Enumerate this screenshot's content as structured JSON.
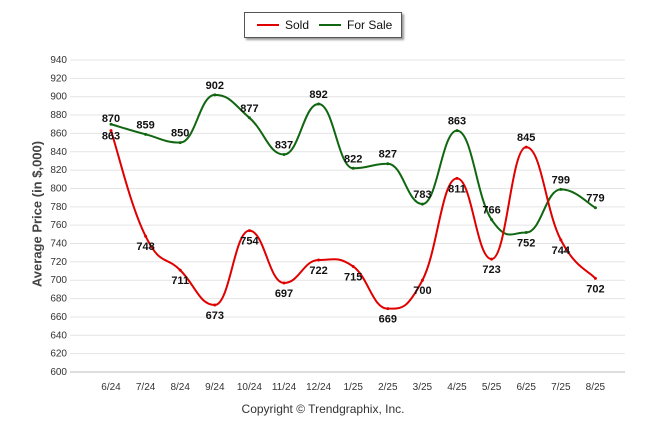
{
  "chart_data": {
    "type": "line",
    "categories": [
      "6/24",
      "7/24",
      "8/24",
      "9/24",
      "10/24",
      "11/24",
      "12/24",
      "1/25",
      "2/25",
      "3/25",
      "4/25",
      "5/25",
      "6/25",
      "7/25",
      "8/25"
    ],
    "series": [
      {
        "name": "Sold",
        "color": "#e00000",
        "values": [
          863,
          748,
          711,
          673,
          754,
          697,
          722,
          715,
          669,
          700,
          811,
          723,
          845,
          744,
          702
        ]
      },
      {
        "name": "For Sale",
        "color": "#116611",
        "values": [
          870,
          859,
          850,
          902,
          877,
          837,
          892,
          822,
          827,
          783,
          863,
          766,
          752,
          799,
          779
        ]
      }
    ],
    "title": "",
    "xlabel": "",
    "ylabel": "Average Price (in $,000)",
    "ylim": [
      600,
      940
    ],
    "yticks": [
      600,
      620,
      640,
      660,
      680,
      700,
      720,
      740,
      760,
      780,
      800,
      820,
      840,
      860,
      880,
      900,
      920,
      940
    ],
    "grid": true,
    "legend": "top-center",
    "credit": "Copyright © Trendgraphix, Inc."
  }
}
